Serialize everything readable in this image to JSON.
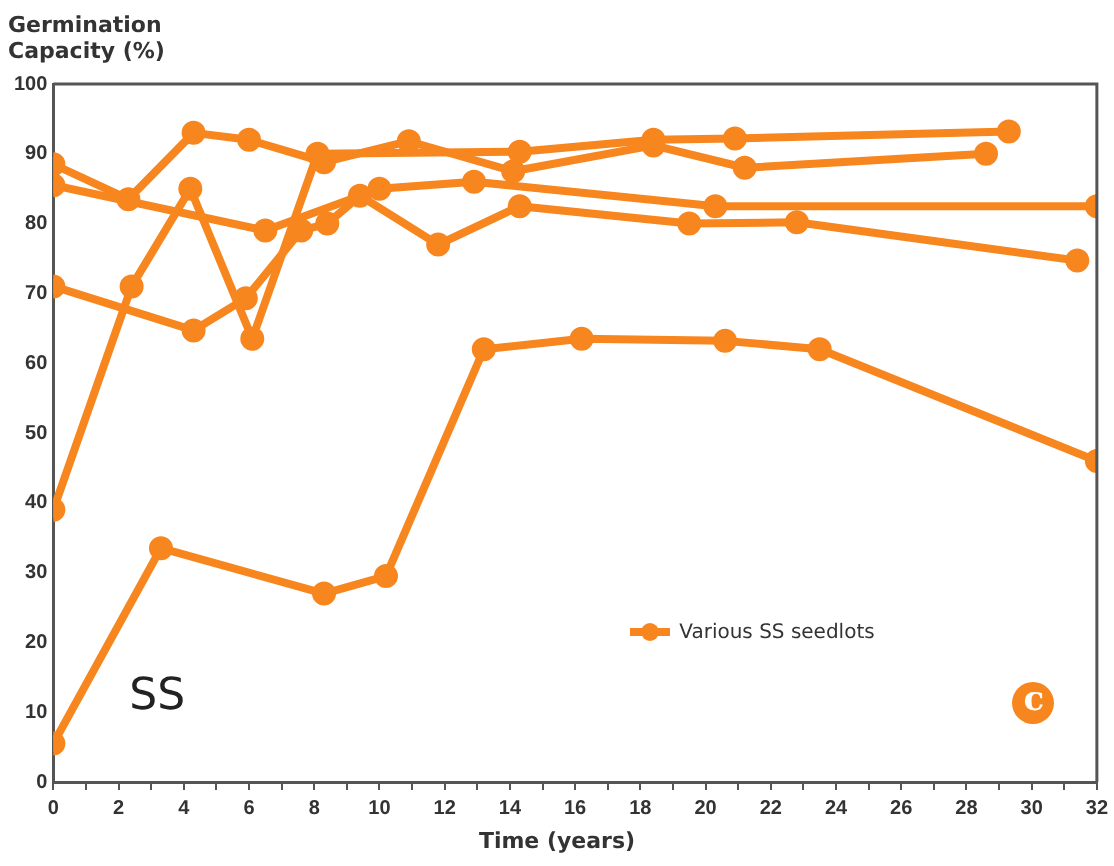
{
  "chart_data": {
    "type": "line",
    "ylabel": "Germination Capacity (%)",
    "xlabel": "Time (years)",
    "xlim": [
      0,
      32
    ],
    "xticks": [
      0,
      {
        "value": 1,
        "label": null
      },
      2,
      {
        "value": 3,
        "label": null
      },
      4,
      {
        "value": 5,
        "label": null
      },
      6,
      {
        "value": 7,
        "label": null
      },
      8,
      {
        "value": 9,
        "label": null
      },
      10,
      {
        "value": 11,
        "label": null
      },
      12,
      {
        "value": 13,
        "label": null
      },
      14,
      {
        "value": 15,
        "label": null
      },
      16,
      {
        "value": 17,
        "label": null
      },
      18,
      {
        "value": 19,
        "label": null
      },
      20,
      {
        "value": 21,
        "label": null
      },
      22,
      {
        "value": 23,
        "label": null
      },
      24,
      {
        "value": 25,
        "label": null
      },
      26,
      {
        "value": 27,
        "label": null
      },
      28,
      {
        "value": 29,
        "label": null
      },
      30,
      {
        "value": 31,
        "label": null
      },
      32
    ],
    "ylim": [
      0,
      100
    ],
    "yticks": [
      0,
      10,
      20,
      30,
      40,
      50,
      60,
      70,
      80,
      90,
      100
    ],
    "grid": false,
    "legend": "bottom right",
    "marker": "circle",
    "line_style": "solid",
    "series": [
      {
        "name": "Various SS seedlots",
        "color": "#f7861f",
        "x": [
          0,
          3.3,
          8.3,
          10.2,
          13.2,
          16.2,
          20.6,
          23.5,
          32
        ],
        "values": [
          5.5,
          33.5,
          27,
          29.5,
          62,
          63.5,
          63.2,
          62,
          46
        ]
      },
      {
        "color": "#f7861f",
        "x": [
          0,
          2.4,
          4.2,
          6.1,
          8.1,
          14.3,
          18.4,
          20.9,
          29.3
        ],
        "values": [
          39,
          71,
          85,
          63.5,
          90,
          90.3,
          92,
          92.2,
          93.2
        ]
      },
      {
        "color": "#f7861f",
        "x": [
          0,
          2.3,
          4.3,
          6,
          8.3,
          10.9,
          14.1,
          18.4,
          21.2,
          28.6
        ],
        "values": [
          88.5,
          83.5,
          93,
          92,
          88.8,
          91.8,
          87.5,
          91.2,
          88,
          90
        ]
      },
      {
        "color": "#f7861f",
        "x": [
          0,
          6.5,
          10,
          12.9,
          20.3,
          32
        ],
        "values": [
          85.5,
          79,
          85,
          86,
          82.5,
          82.5
        ]
      },
      {
        "color": "#f7861f",
        "x": [
          0,
          4.3,
          5.9,
          7.6,
          8.4,
          9.4,
          11.8,
          14.3,
          19.5,
          22.8,
          31.4
        ],
        "values": [
          71,
          64.7,
          69.3,
          79,
          80,
          84,
          77,
          82.5,
          80,
          80.2,
          74.7
        ]
      }
    ],
    "annotations": [
      "SS",
      "c"
    ]
  }
}
